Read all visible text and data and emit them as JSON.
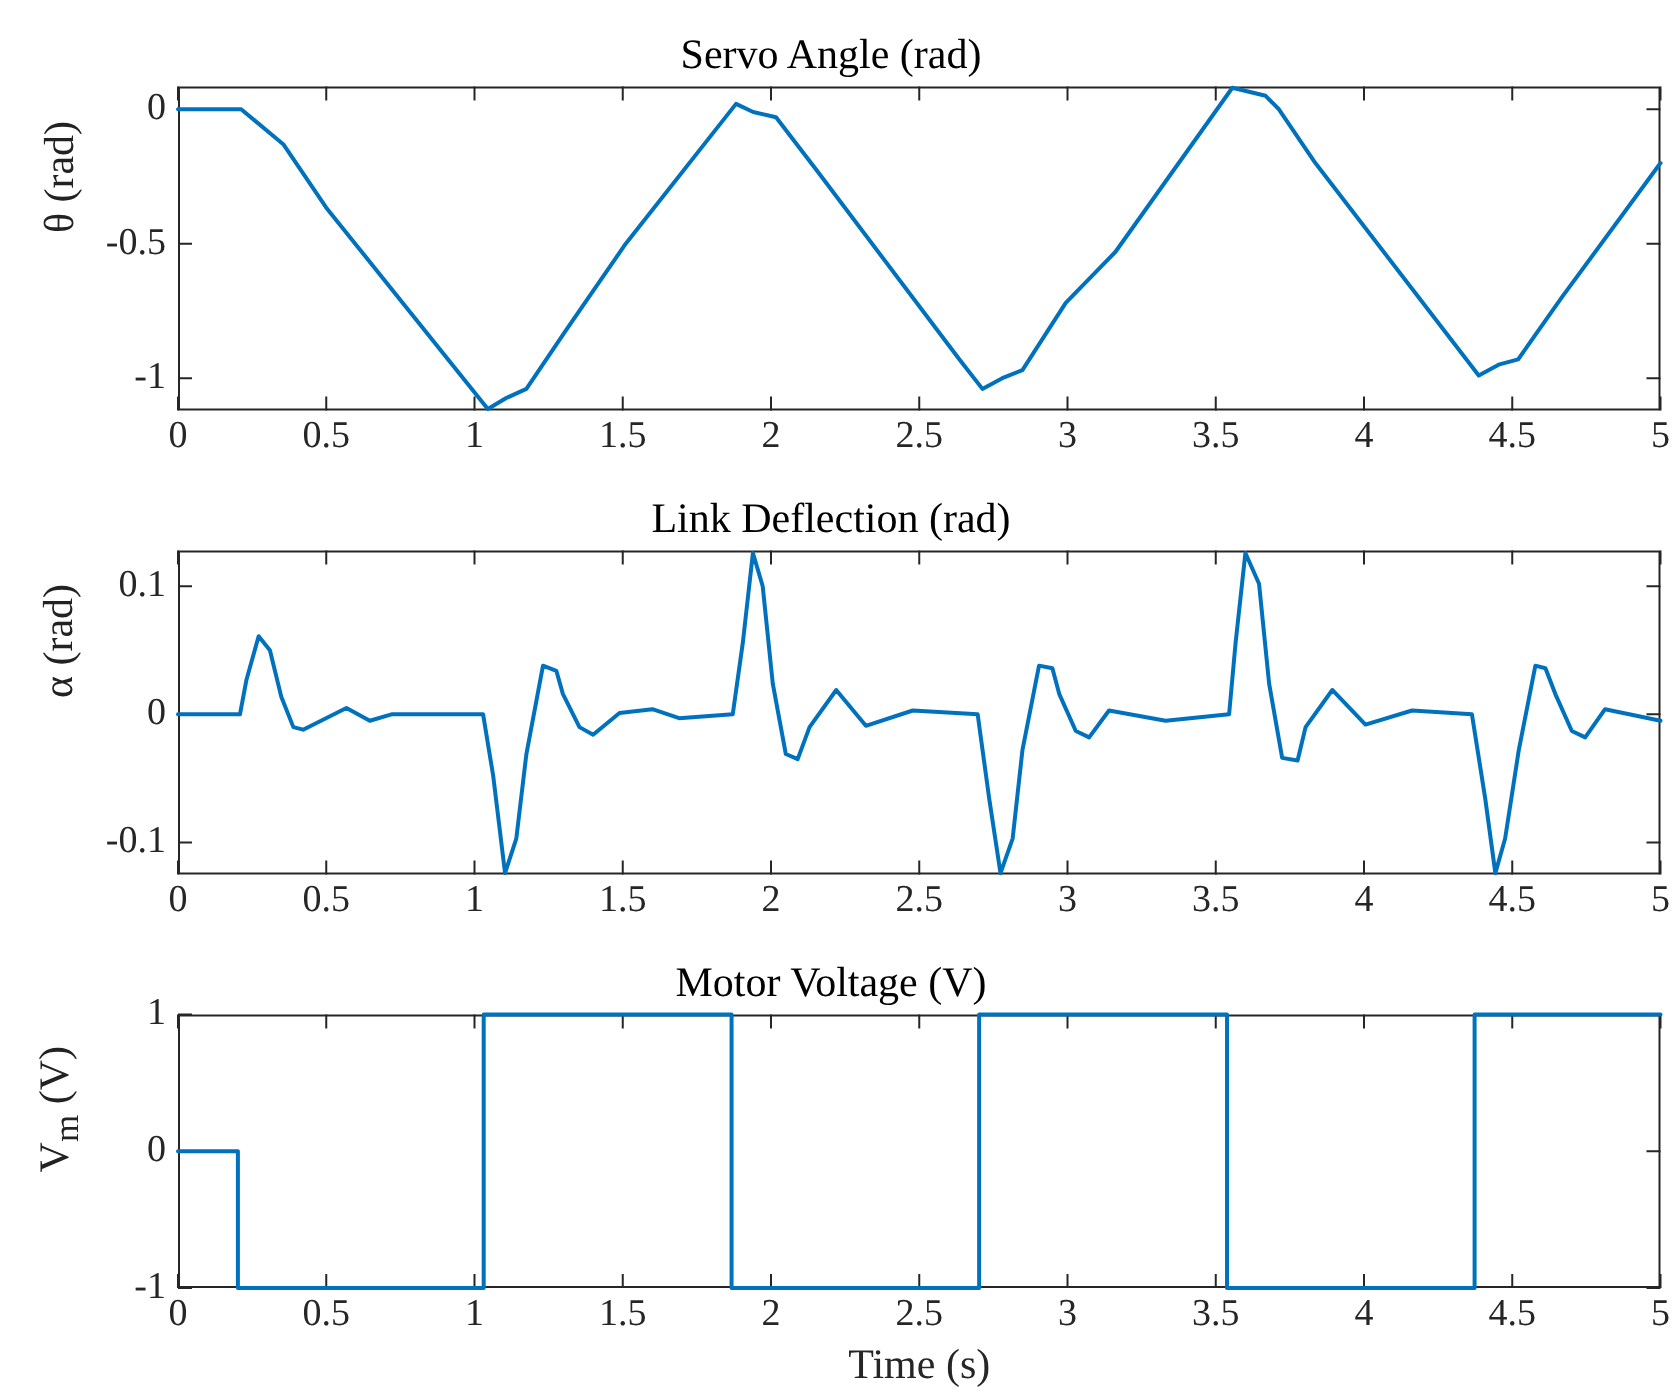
{
  "chart_data": [
    {
      "type": "line",
      "title": "Servo Angle (rad)",
      "ylabel": "θ (rad)",
      "color": "#0072bd",
      "x": [
        0,
        0.213,
        0.355,
        0.5,
        1.045,
        1.107,
        1.175,
        1.31,
        1.51,
        1.882,
        1.94,
        2.017,
        2.163,
        2.635,
        2.713,
        2.78,
        2.848,
        2.994,
        3.162,
        3.556,
        3.668,
        3.713,
        3.836,
        4.387,
        4.454,
        4.52,
        4.667,
        5.0
      ],
      "values": [
        0,
        0,
        -0.13,
        -0.366,
        -1.115,
        -1.074,
        -1.04,
        -0.82,
        -0.5,
        0.02,
        -0.01,
        -0.03,
        -0.24,
        -0.93,
        -1.04,
        -1.0,
        -0.97,
        -0.72,
        -0.53,
        0.08,
        0.05,
        0.0,
        -0.2,
        -0.99,
        -0.95,
        -0.93,
        -0.7,
        -0.2
      ],
      "xlim": [
        0,
        5
      ],
      "xticks": [
        0,
        0.5,
        1,
        1.5,
        2,
        2.5,
        3,
        3.5,
        4,
        4.5,
        5
      ],
      "ylim": [
        -1.12,
        0.085
      ],
      "yticks": [
        -1,
        -0.5,
        0
      ],
      "grid": false
    },
    {
      "type": "line",
      "title": "Link Deflection (rad)",
      "ylabel": "α (rad)",
      "color": "#0072bd",
      "x": [
        0,
        0.209,
        0.231,
        0.272,
        0.31,
        0.348,
        0.389,
        0.422,
        0.568,
        0.647,
        0.72,
        1.029,
        1.063,
        1.103,
        1.141,
        1.175,
        1.231,
        1.276,
        1.298,
        1.354,
        1.4,
        1.489,
        1.6,
        1.69,
        1.871,
        1.905,
        1.939,
        1.972,
        2.006,
        2.05,
        2.09,
        2.13,
        2.22,
        2.32,
        2.478,
        2.697,
        2.736,
        2.774,
        2.815,
        2.848,
        2.904,
        2.949,
        2.972,
        3.028,
        3.073,
        3.14,
        3.331,
        3.545,
        3.567,
        3.6,
        3.646,
        3.68,
        3.724,
        3.776,
        3.803,
        3.893,
        4.005,
        4.162,
        4.364,
        4.409,
        4.443,
        4.476,
        4.522,
        4.578,
        4.612,
        4.645,
        4.701,
        4.746,
        4.813,
        5.0
      ],
      "values": [
        0,
        0,
        0.027,
        0.061,
        0.05,
        0.014,
        -0.01,
        -0.012,
        0.005,
        -0.005,
        0,
        0,
        -0.048,
        -0.124,
        -0.097,
        -0.031,
        0.038,
        0.034,
        0.016,
        -0.01,
        -0.016,
        0.001,
        0.004,
        -0.003,
        0,
        0.056,
        0.126,
        0.1,
        0.024,
        -0.031,
        -0.035,
        -0.01,
        0.019,
        -0.009,
        0.003,
        0,
        -0.066,
        -0.124,
        -0.097,
        -0.028,
        0.038,
        0.036,
        0.016,
        -0.013,
        -0.018,
        0.003,
        -0.005,
        0,
        0.056,
        0.126,
        0.102,
        0.024,
        -0.034,
        -0.036,
        -0.01,
        0.019,
        -0.008,
        0.003,
        0,
        -0.066,
        -0.124,
        -0.097,
        -0.028,
        0.038,
        0.036,
        0.016,
        -0.013,
        -0.018,
        0.004,
        -0.005
      ],
      "xlim": [
        0,
        5
      ],
      "xticks": [
        0,
        0.5,
        1,
        1.5,
        2,
        2.5,
        3,
        3.5,
        4,
        4.5,
        5
      ],
      "ylim": [
        -0.125,
        0.128
      ],
      "yticks": [
        -0.1,
        0,
        0.1
      ],
      "grid": false
    },
    {
      "type": "step",
      "title": "Motor Voltage (V)",
      "ylabel": "V$_{m}$ (V)",
      "xlabel": "Time (s)",
      "color": "#0072bd",
      "x": [
        0,
        0.202,
        1.031,
        1.867,
        2.702,
        3.538,
        4.373,
        5.0
      ],
      "values": [
        0,
        -1,
        1,
        -1,
        1,
        -1,
        1,
        1
      ],
      "xlim": [
        0,
        5
      ],
      "xticks": [
        0,
        0.5,
        1,
        1.5,
        2,
        2.5,
        3,
        3.5,
        4,
        4.5,
        5
      ],
      "ylim": [
        -1,
        1
      ],
      "yticks": [
        -1,
        0,
        1
      ],
      "grid": false
    }
  ]
}
